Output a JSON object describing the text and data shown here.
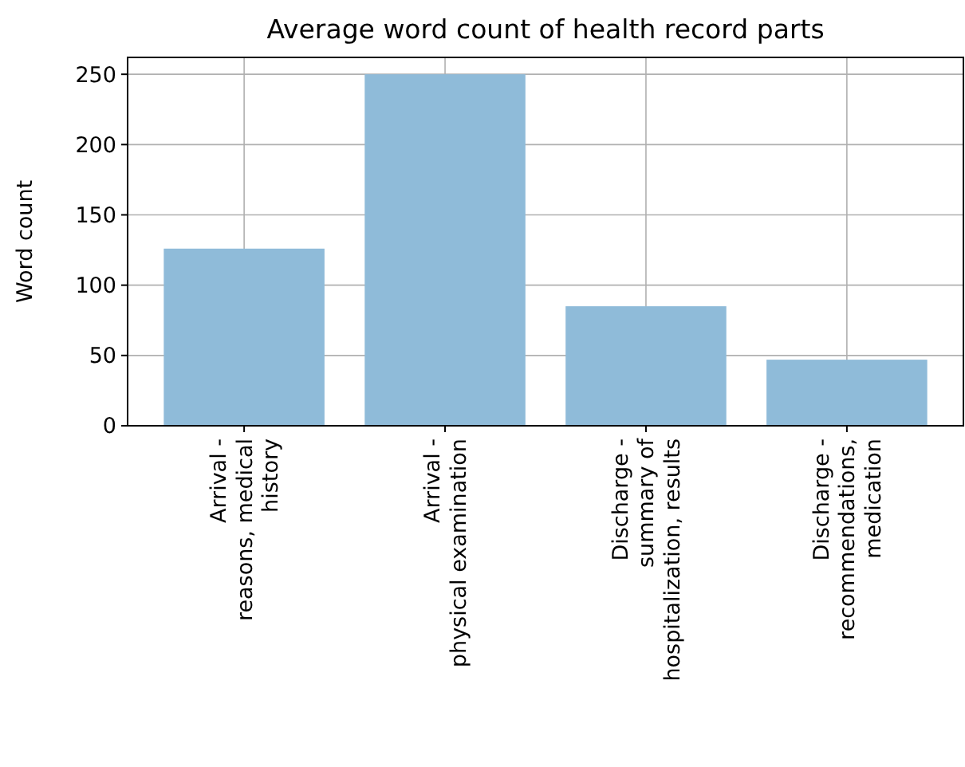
{
  "chart_data": {
    "type": "bar",
    "title": "Average word count of health record parts",
    "ylabel": "Word count",
    "categories": [
      "Arrival -\nreasons, medical\nhistory",
      "Arrival -\nphysical examination",
      "Discharge -\nsummary of\nhospitalization, results",
      "Discharge -\nrecommendations,\nmedication"
    ],
    "values": [
      126,
      250,
      85,
      47
    ],
    "color": "#8fbbd9",
    "ylim": [
      0,
      262
    ],
    "yticks": [
      0,
      50,
      100,
      150,
      200,
      250
    ],
    "grid": true
  }
}
